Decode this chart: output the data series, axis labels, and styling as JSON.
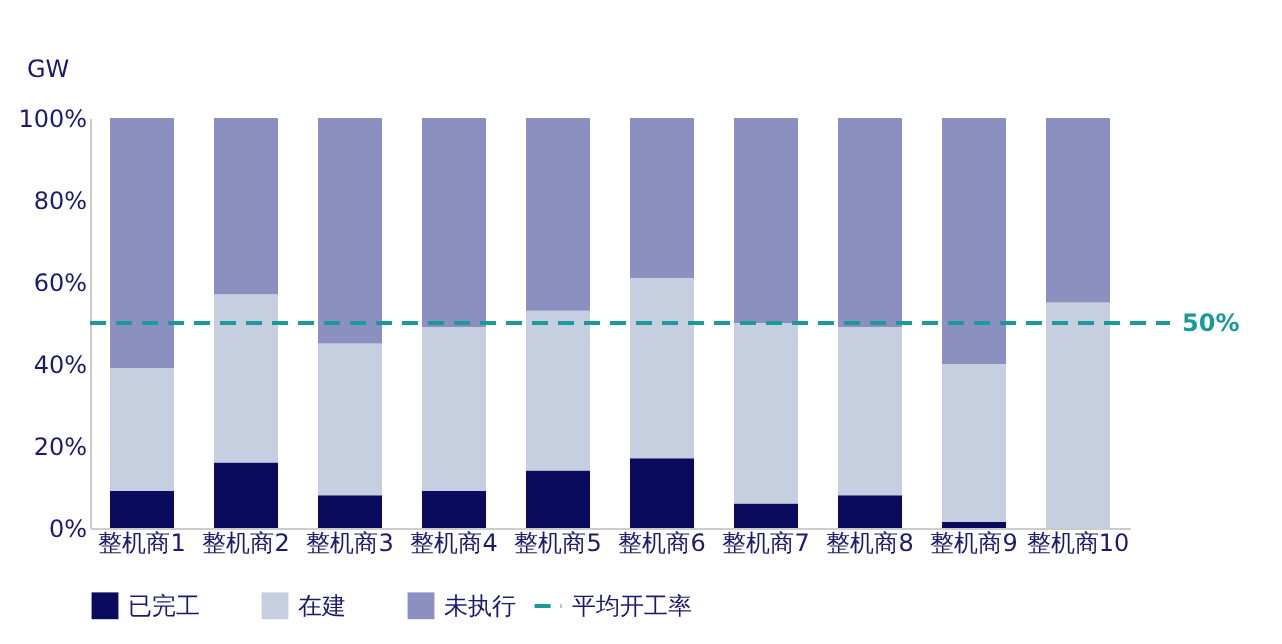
{
  "chart_data": {
    "type": "bar",
    "stacked": true,
    "ylabel": "GW",
    "categories": [
      "整机商1",
      "整机商2",
      "整机商3",
      "整机商4",
      "整机商5",
      "整机商6",
      "整机商7",
      "整机商8",
      "整机商9",
      "整机商10"
    ],
    "series": [
      {
        "name": "已完工",
        "color": "#0a0a5e",
        "values": [
          9,
          16,
          8,
          9,
          14,
          17,
          6,
          8,
          1.5,
          0
        ]
      },
      {
        "name": "在建",
        "color": "#c5cfe0",
        "values": [
          30,
          41,
          37,
          40,
          39,
          44,
          44,
          41,
          38.5,
          55
        ]
      },
      {
        "name": "未执行",
        "color": "#8c90c0",
        "values": [
          61,
          43,
          55,
          51,
          47,
          39,
          50,
          51,
          60,
          45
        ]
      }
    ],
    "ylim": [
      0,
      100
    ],
    "yticks": [
      {
        "value": 0,
        "label": "0%"
      },
      {
        "value": 20,
        "label": "20%"
      },
      {
        "value": 40,
        "label": "40%"
      },
      {
        "value": 60,
        "label": "60%"
      },
      {
        "value": 80,
        "label": "80%"
      },
      {
        "value": 100,
        "label": "100%"
      }
    ],
    "ref_lines": [
      {
        "axis": "y",
        "value": 50,
        "label": "平均开工率",
        "color": "#1a9a9a",
        "line_style": "dashed"
      }
    ],
    "annotations": [
      "50%"
    ],
    "legend": "bottom",
    "grid": false
  }
}
